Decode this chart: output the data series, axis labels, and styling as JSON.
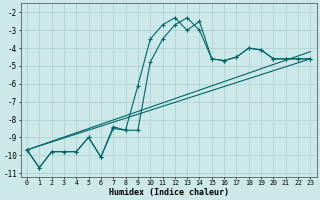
{
  "xlabel": "Humidex (Indice chaleur)",
  "background_color": "#cce8e8",
  "grid_color": "#afd4d4",
  "line_color": "#006666",
  "xlim": [
    -0.5,
    23.5
  ],
  "ylim": [
    -11.2,
    -1.5
  ],
  "x": [
    0,
    1,
    2,
    3,
    4,
    5,
    6,
    7,
    8,
    9,
    10,
    11,
    12,
    13,
    14,
    15,
    16,
    17,
    18,
    19,
    20,
    21,
    22,
    23
  ],
  "series1": [
    -9.7,
    -10.7,
    -9.8,
    -9.8,
    -9.8,
    -9.0,
    -10.1,
    -8.4,
    -8.6,
    -6.1,
    -3.5,
    -2.7,
    -2.3,
    -3.0,
    -2.5,
    -4.6,
    -4.7,
    -4.5,
    -4.0,
    -4.1,
    -4.6,
    -4.6,
    -4.6,
    -4.6
  ],
  "series2": [
    -9.7,
    -10.7,
    -9.8,
    -9.8,
    -9.8,
    -9.0,
    -10.1,
    -8.5,
    -8.6,
    -8.6,
    -4.8,
    -3.5,
    -2.7,
    -2.3,
    -3.0,
    -4.6,
    -4.7,
    -4.5,
    -4.0,
    -4.1,
    -4.6,
    -4.6,
    -4.6,
    -4.6
  ],
  "trend1_x": [
    0,
    23
  ],
  "trend1_y": [
    -9.7,
    -4.6
  ],
  "trend2_x": [
    0,
    23
  ],
  "trend2_y": [
    -9.7,
    -4.2
  ],
  "yticks": [
    -11,
    -10,
    -9,
    -8,
    -7,
    -6,
    -5,
    -4,
    -3,
    -2
  ],
  "xticks": [
    0,
    1,
    2,
    3,
    4,
    5,
    6,
    7,
    8,
    9,
    10,
    11,
    12,
    13,
    14,
    15,
    16,
    17,
    18,
    19,
    20,
    21,
    22,
    23
  ]
}
